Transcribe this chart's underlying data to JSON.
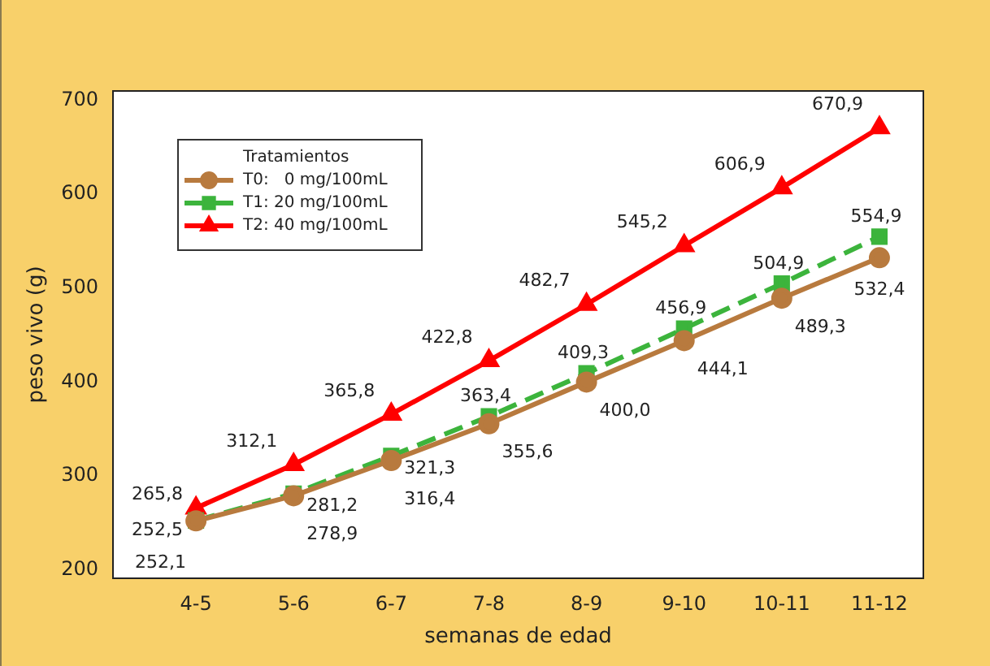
{
  "chart_data": {
    "type": "line",
    "xlabel": "semanas de edad",
    "ylabel": "peso vivo (g)",
    "legend_title": "Tratamientos",
    "legend": "top left",
    "grid": false,
    "categories": [
      "4-5",
      "5-6",
      "6-7",
      "7-8",
      "8-9",
      "9-10",
      "10-11",
      "11-12"
    ],
    "ylim": [
      191,
      710
    ],
    "yticks": [
      200,
      300,
      400,
      500,
      600,
      700
    ],
    "series": [
      {
        "name": "T0:   0 mg/100mL",
        "color": "#b87a3e",
        "marker": "circle",
        "line_style": "solid",
        "values": [
          252.1,
          278.9,
          316.4,
          355.6,
          400.0,
          444.1,
          489.3,
          532.4
        ],
        "value_labels": [
          "252,1",
          "278,9",
          "316,4",
          "355,6",
          "400,0",
          "444,1",
          "489,3",
          "532,4"
        ]
      },
      {
        "name": "T1: 20 mg/100mL",
        "color": "#3cb43c",
        "marker": "square",
        "line_style": "dashed",
        "values": [
          252.5,
          281.2,
          321.3,
          363.4,
          409.3,
          456.9,
          504.9,
          554.9
        ],
        "value_labels": [
          "252,5",
          "281,2",
          "321,3",
          "363,4",
          "409,3",
          "456,9",
          "504,9",
          "554,9"
        ]
      },
      {
        "name": "T2: 40 mg/100mL",
        "color": "#ff0000",
        "marker": "triangle",
        "line_style": "solid",
        "values": [
          265.8,
          312.1,
          365.8,
          422.8,
          482.7,
          545.2,
          606.9,
          670.9
        ],
        "value_labels": [
          "265,8",
          "312,1",
          "365,8",
          "422,8",
          "482,7",
          "545,2",
          "606,9",
          "670,9"
        ]
      }
    ]
  }
}
